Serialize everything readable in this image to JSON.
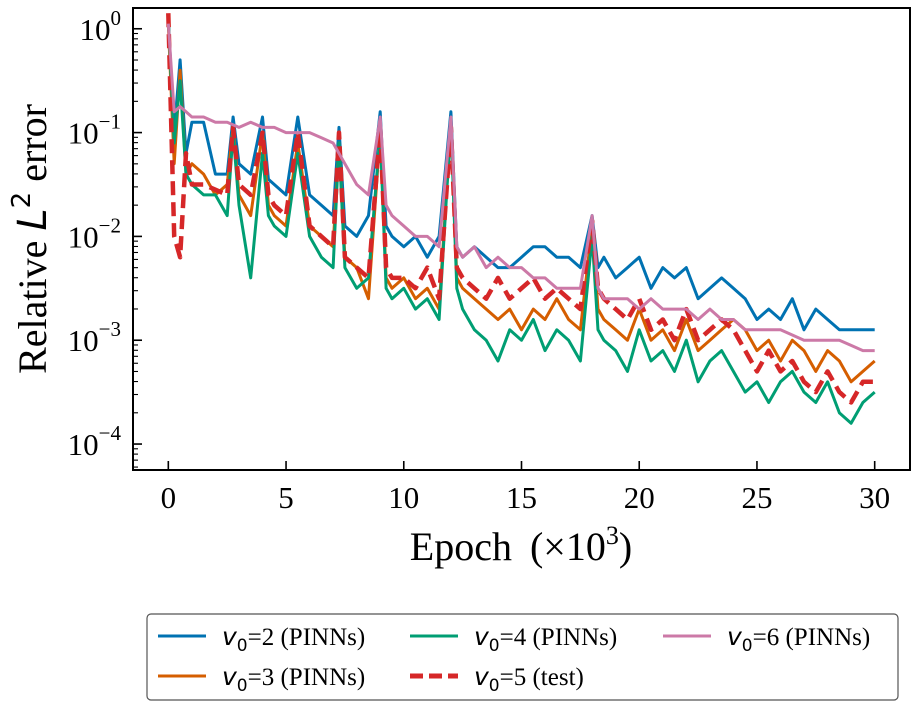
{
  "chart_data": {
    "type": "line",
    "xlabel": "Epoch",
    "xlabel_unit": "(×10",
    "xlabel_unit_exp": "3",
    "xlabel_unit_close": ")",
    "ylabel": "Relative ",
    "ylabel_symbol": "L",
    "ylabel_exp": "2",
    "ylabel_suffix": " error",
    "xlim": [
      -1.5,
      31.5
    ],
    "ylim_log10": [
      -4.25,
      0.2
    ],
    "yscale": "log",
    "x_ticks": [
      0,
      5,
      10,
      15,
      20,
      25,
      30
    ],
    "x_tick_labels": [
      "0",
      "5",
      "10",
      "15",
      "20",
      "25",
      "30"
    ],
    "y_ticks_log10": [
      0,
      -1,
      -2,
      -3,
      -4
    ],
    "y_tick_base": "10",
    "y_tick_exponents": [
      "0",
      "−1",
      "−2",
      "−3",
      "−4"
    ],
    "grid": false,
    "legend_position": "below plot, centered",
    "series": [
      {
        "name": "=2 (PINNs)",
        "symbol": "v",
        "subscript": "0",
        "color": "#0072B2",
        "dashed": false,
        "x": [
          0,
          0.25,
          0.5,
          0.75,
          1.0,
          1.5,
          2.0,
          2.5,
          2.75,
          3.0,
          3.5,
          4.0,
          4.25,
          4.5,
          5.0,
          5.5,
          6.0,
          6.5,
          7.0,
          7.25,
          7.5,
          8.0,
          8.5,
          9.0,
          9.25,
          9.5,
          10.0,
          10.5,
          11.0,
          11.5,
          12.0,
          12.25,
          12.5,
          13.0,
          13.5,
          14.0,
          14.5,
          15.0,
          15.5,
          16.0,
          16.5,
          17.0,
          17.5,
          18.0,
          18.25,
          18.5,
          19.0,
          19.5,
          20.0,
          20.5,
          21.0,
          21.5,
          22.0,
          22.5,
          23.0,
          23.5,
          24.0,
          24.5,
          25.0,
          25.5,
          26.0,
          26.5,
          27.0,
          27.5,
          28.0,
          28.5,
          29.0,
          29.5,
          30.0
        ],
        "y_log10": [
          0.1,
          -1.0,
          -0.3,
          -1.2,
          -0.9,
          -0.9,
          -1.4,
          -1.4,
          -0.85,
          -1.3,
          -1.4,
          -0.85,
          -1.45,
          -1.5,
          -1.6,
          -0.85,
          -1.6,
          -1.7,
          -1.8,
          -0.95,
          -1.9,
          -2.0,
          -1.8,
          -0.8,
          -1.9,
          -2.0,
          -2.1,
          -2.0,
          -2.2,
          -2.0,
          -0.8,
          -2.1,
          -2.2,
          -2.1,
          -2.2,
          -2.3,
          -2.3,
          -2.2,
          -2.1,
          -2.1,
          -2.2,
          -2.2,
          -2.3,
          -1.8,
          -2.3,
          -2.2,
          -2.4,
          -2.3,
          -2.2,
          -2.5,
          -2.3,
          -2.4,
          -2.3,
          -2.6,
          -2.5,
          -2.4,
          -2.5,
          -2.6,
          -2.8,
          -2.7,
          -2.8,
          -2.6,
          -2.9,
          -2.7,
          -2.8,
          -2.9,
          -2.9,
          -2.9,
          -2.9
        ]
      },
      {
        "name": "=3 (PINNs)",
        "symbol": "v",
        "subscript": "0",
        "color": "#D55E00",
        "dashed": false,
        "x": [
          0,
          0.25,
          0.5,
          0.75,
          1.0,
          1.5,
          2.0,
          2.5,
          2.75,
          3.0,
          3.5,
          4.0,
          4.25,
          4.5,
          5.0,
          5.5,
          6.0,
          6.5,
          7.0,
          7.25,
          7.5,
          8.0,
          8.5,
          9.0,
          9.25,
          9.5,
          10.0,
          10.5,
          11.0,
          11.5,
          12.0,
          12.25,
          12.5,
          13.0,
          13.5,
          14.0,
          14.5,
          15.0,
          15.5,
          16.0,
          16.5,
          17.0,
          17.5,
          18.0,
          18.25,
          18.5,
          19.0,
          19.5,
          20.0,
          20.5,
          21.0,
          21.5,
          22.0,
          22.5,
          23.0,
          23.5,
          24.0,
          24.5,
          25.0,
          25.5,
          26.0,
          26.5,
          27.0,
          27.5,
          28.0,
          28.5,
          29.0,
          29.5,
          30.0
        ],
        "y_log10": [
          0.05,
          -1.3,
          -0.4,
          -1.4,
          -1.3,
          -1.4,
          -1.6,
          -1.5,
          -0.95,
          -1.6,
          -1.8,
          -1.0,
          -1.7,
          -1.8,
          -1.9,
          -1.1,
          -1.9,
          -2.0,
          -2.1,
          -1.1,
          -2.2,
          -2.3,
          -2.6,
          -1.0,
          -2.4,
          -2.5,
          -2.4,
          -2.6,
          -2.5,
          -2.7,
          -0.9,
          -2.4,
          -2.5,
          -2.6,
          -2.7,
          -2.8,
          -2.7,
          -2.9,
          -2.7,
          -2.8,
          -2.6,
          -2.8,
          -2.9,
          -1.9,
          -2.7,
          -2.8,
          -2.9,
          -3.0,
          -2.7,
          -3.0,
          -2.9,
          -3.1,
          -2.8,
          -3.1,
          -3.0,
          -2.9,
          -2.8,
          -2.9,
          -3.1,
          -3.0,
          -3.2,
          -3.0,
          -3.1,
          -3.3,
          -3.1,
          -3.2,
          -3.4,
          -3.3,
          -3.2
        ]
      },
      {
        "name": "=4 (PINNs)",
        "symbol": "v",
        "subscript": "0",
        "color": "#009E73",
        "dashed": false,
        "x": [
          0,
          0.25,
          0.5,
          0.75,
          1.0,
          1.5,
          2.0,
          2.5,
          2.75,
          3.0,
          3.5,
          4.0,
          4.25,
          4.5,
          5.0,
          5.5,
          6.0,
          6.5,
          7.0,
          7.25,
          7.5,
          8.0,
          8.5,
          9.0,
          9.25,
          9.5,
          10.0,
          10.5,
          11.0,
          11.5,
          12.0,
          12.25,
          12.5,
          13.0,
          13.5,
          14.0,
          14.5,
          15.0,
          15.5,
          16.0,
          16.5,
          17.0,
          17.5,
          18.0,
          18.25,
          18.5,
          19.0,
          19.5,
          20.0,
          20.5,
          21.0,
          21.5,
          22.0,
          22.5,
          23.0,
          23.5,
          24.0,
          24.5,
          25.0,
          25.5,
          26.0,
          26.5,
          27.0,
          27.5,
          28.0,
          28.5,
          29.0,
          29.5,
          30.0
        ],
        "y_log10": [
          0.1,
          -1.1,
          -0.5,
          -1.4,
          -1.5,
          -1.6,
          -1.6,
          -1.8,
          -1.0,
          -1.7,
          -2.4,
          -1.2,
          -1.8,
          -1.9,
          -2.0,
          -1.2,
          -2.0,
          -2.2,
          -2.3,
          -1.1,
          -2.3,
          -2.5,
          -2.4,
          -1.0,
          -2.5,
          -2.6,
          -2.5,
          -2.7,
          -2.6,
          -2.8,
          -0.9,
          -2.5,
          -2.7,
          -2.9,
          -3.0,
          -3.2,
          -2.9,
          -3.0,
          -2.8,
          -3.1,
          -2.9,
          -3.0,
          -3.2,
          -2.0,
          -2.9,
          -3.0,
          -3.1,
          -3.3,
          -2.9,
          -3.2,
          -3.1,
          -3.3,
          -3.0,
          -3.4,
          -3.2,
          -3.1,
          -3.3,
          -3.5,
          -3.4,
          -3.6,
          -3.4,
          -3.3,
          -3.5,
          -3.6,
          -3.4,
          -3.7,
          -3.8,
          -3.6,
          -3.5
        ]
      },
      {
        "name": "=5 (test)",
        "symbol": "v",
        "subscript": "0",
        "color": "#D62728",
        "dashed": true,
        "x": [
          0,
          0.25,
          0.5,
          0.75,
          1.0,
          1.5,
          2.0,
          2.5,
          2.75,
          3.0,
          3.5,
          4.0,
          4.25,
          4.5,
          5.0,
          5.5,
          6.0,
          6.5,
          7.0,
          7.25,
          7.5,
          8.0,
          8.5,
          9.0,
          9.25,
          9.5,
          10.0,
          10.5,
          11.0,
          11.5,
          12.0,
          12.25,
          12.5,
          13.0,
          13.5,
          14.0,
          14.5,
          15.0,
          15.5,
          16.0,
          16.5,
          17.0,
          17.5,
          18.0,
          18.25,
          18.5,
          19.0,
          19.5,
          20.0,
          20.5,
          21.0,
          21.5,
          22.0,
          22.5,
          23.0,
          23.5,
          24.0,
          24.5,
          25.0,
          25.5,
          26.0,
          26.5,
          27.0,
          27.5,
          28.0,
          28.5,
          29.0,
          29.5,
          30.0
        ],
        "y_log10": [
          0.15,
          -2.0,
          -2.2,
          -1.2,
          -1.5,
          -1.5,
          -1.55,
          -1.6,
          -0.95,
          -1.5,
          -1.6,
          -1.0,
          -1.6,
          -1.7,
          -1.8,
          -1.0,
          -1.9,
          -2.0,
          -2.1,
          -1.0,
          -2.2,
          -2.3,
          -2.4,
          -0.95,
          -2.3,
          -2.4,
          -2.4,
          -2.5,
          -2.3,
          -2.6,
          -0.95,
          -2.3,
          -2.4,
          -2.5,
          -2.6,
          -2.4,
          -2.6,
          -2.5,
          -2.4,
          -2.6,
          -2.5,
          -2.6,
          -2.7,
          -1.85,
          -2.5,
          -2.6,
          -2.7,
          -2.8,
          -2.6,
          -2.9,
          -2.8,
          -3.0,
          -2.7,
          -3.0,
          -2.9,
          -2.8,
          -2.9,
          -3.1,
          -3.3,
          -3.1,
          -3.3,
          -3.2,
          -3.4,
          -3.5,
          -3.3,
          -3.5,
          -3.6,
          -3.4,
          -3.4
        ]
      },
      {
        "name": "=6 (PINNs)",
        "symbol": "v",
        "subscript": "0",
        "color": "#CC79A7",
        "dashed": false,
        "x": [
          0,
          0.25,
          0.5,
          0.75,
          1.0,
          1.5,
          2.0,
          2.5,
          3.0,
          3.5,
          4.0,
          4.5,
          5.0,
          5.5,
          6.0,
          6.5,
          7.0,
          7.5,
          8.0,
          8.5,
          9.0,
          9.25,
          9.5,
          10.0,
          10.5,
          11.0,
          11.5,
          12.0,
          12.25,
          12.5,
          13.0,
          13.5,
          14.0,
          14.5,
          15.0,
          15.5,
          16.0,
          16.5,
          17.0,
          17.5,
          18.0,
          18.25,
          18.5,
          19.0,
          19.5,
          20.0,
          20.5,
          21.0,
          21.5,
          22.0,
          22.5,
          23.0,
          23.5,
          24.0,
          24.5,
          25.0,
          25.5,
          26.0,
          26.5,
          27.0,
          27.5,
          28.0,
          28.5,
          29.0,
          29.5,
          30.0
        ],
        "y_log10": [
          0.05,
          -0.8,
          -0.75,
          -0.8,
          -0.85,
          -0.85,
          -0.9,
          -0.9,
          -0.95,
          -0.9,
          -0.95,
          -0.95,
          -1.0,
          -1.0,
          -1.0,
          -1.05,
          -1.1,
          -1.3,
          -1.5,
          -1.6,
          -0.85,
          -1.7,
          -1.8,
          -1.9,
          -2.0,
          -2.0,
          -2.1,
          -0.85,
          -2.1,
          -2.2,
          -2.1,
          -2.3,
          -2.2,
          -2.3,
          -2.3,
          -2.4,
          -2.4,
          -2.5,
          -2.5,
          -2.5,
          -1.8,
          -2.5,
          -2.6,
          -2.6,
          -2.6,
          -2.7,
          -2.6,
          -2.7,
          -2.7,
          -2.7,
          -2.8,
          -2.7,
          -2.8,
          -2.8,
          -2.9,
          -2.9,
          -2.9,
          -2.9,
          -2.95,
          -3.0,
          -3.0,
          -3.0,
          -3.0,
          -3.05,
          -3.1,
          -3.1
        ]
      }
    ]
  }
}
